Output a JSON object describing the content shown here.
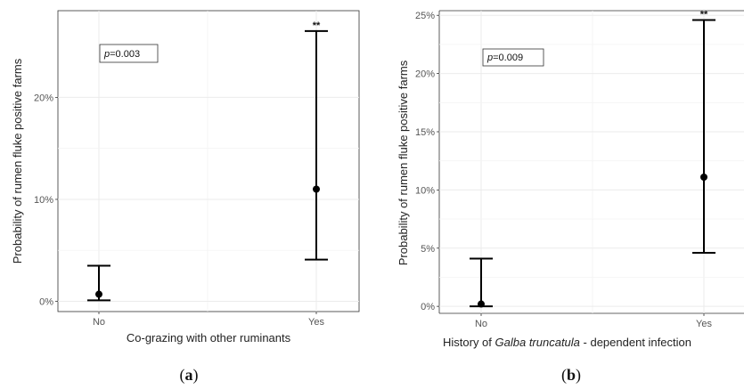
{
  "chart_data": [
    {
      "type": "errorbar",
      "panel_label": "a",
      "xlabel": "Co-grazing with other ruminants",
      "ylabel": "Probability of rumen fluke positive farms",
      "categories": [
        "No",
        "Yes"
      ],
      "estimates": [
        0.7,
        11.0
      ],
      "lower": [
        0.1,
        4.1
      ],
      "upper": [
        3.5,
        26.5
      ],
      "ylim": [
        -1,
        28.5
      ],
      "yticks": [
        0,
        10,
        20
      ],
      "ytick_labels": [
        "0%",
        "10%",
        "20%"
      ],
      "p_label": "p",
      "p_value": "=0.003",
      "significance": [
        "",
        "**"
      ],
      "grid": true
    },
    {
      "type": "errorbar",
      "panel_label": "b",
      "xlabel_parts": [
        "History of ",
        "Galba truncatula",
        " - dependent infection"
      ],
      "ylabel": "Probability of rumen fluke positive farms",
      "categories": [
        "No",
        "Yes"
      ],
      "estimates": [
        0.2,
        11.1
      ],
      "lower": [
        0.0,
        4.6
      ],
      "upper": [
        4.1,
        24.6
      ],
      "ylim": [
        -0.6,
        25.4
      ],
      "yticks": [
        0,
        5,
        10,
        15,
        20,
        25
      ],
      "ytick_labels": [
        "0%",
        "5%",
        "10%",
        "15%",
        "20%",
        "25%"
      ],
      "p_label": "p",
      "p_value": "=0.009",
      "significance": [
        "",
        "**"
      ],
      "grid": true
    }
  ]
}
